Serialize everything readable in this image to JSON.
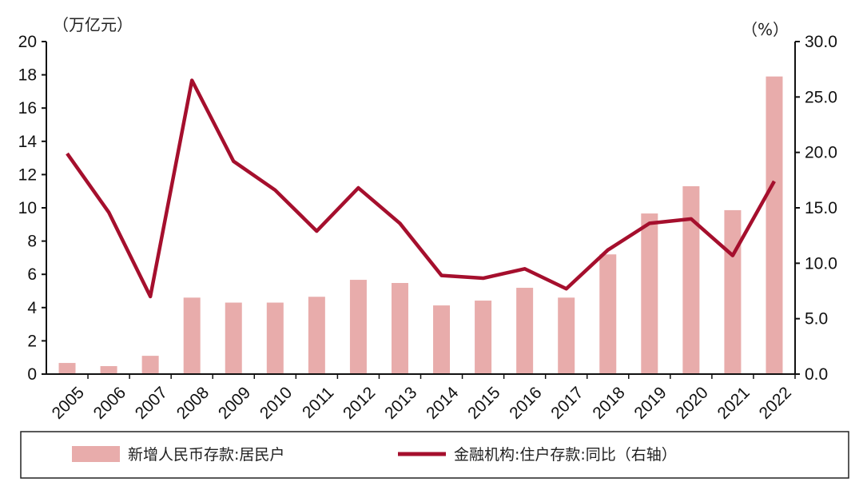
{
  "chart_data": {
    "type": "bar+line",
    "categories": [
      "2005",
      "2006",
      "2007",
      "2008",
      "2009",
      "2010",
      "2011",
      "2012",
      "2013",
      "2014",
      "2015",
      "2016",
      "2017",
      "2018",
      "2019",
      "2020",
      "2021",
      "2022"
    ],
    "left_axis": {
      "unit": "（万亿元）",
      "ylim": [
        0,
        20
      ],
      "ticks": [
        "0",
        "2",
        "4",
        "6",
        "8",
        "10",
        "12",
        "14",
        "16",
        "18",
        "20"
      ]
    },
    "right_axis": {
      "unit": "（%）",
      "ylim": [
        0,
        30
      ],
      "ticks": [
        "0.0",
        "5.0",
        "10.0",
        "15.0",
        "20.0",
        "25.0",
        "30.0"
      ]
    },
    "series": [
      {
        "name": "新增人民币存款:居民户",
        "type": "bar",
        "axis": "left",
        "color": "#e8acab",
        "values": [
          0.67,
          0.48,
          1.1,
          4.6,
          4.3,
          4.3,
          4.65,
          5.67,
          5.48,
          4.13,
          4.42,
          5.19,
          4.6,
          7.2,
          9.66,
          11.3,
          9.86,
          17.9
        ]
      },
      {
        "name": "金融机构:住户存款:同比（右轴）",
        "type": "line",
        "axis": "right",
        "color": "#a50f2d",
        "values": [
          19.9,
          14.6,
          7.0,
          26.5,
          19.2,
          16.6,
          12.9,
          16.8,
          13.6,
          8.9,
          8.65,
          9.5,
          7.7,
          11.2,
          13.6,
          14.0,
          10.7,
          17.4
        ]
      }
    ],
    "grid": false,
    "legend": "bottom"
  }
}
